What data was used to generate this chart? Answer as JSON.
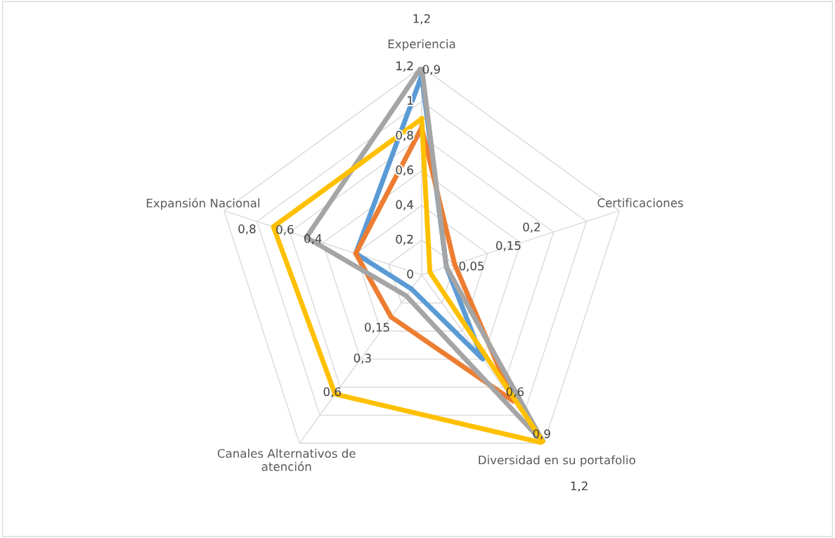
{
  "chart_data": {
    "type": "radar",
    "categories": [
      "Experiencia",
      "Certificaciones",
      "Diversidad en su portafolio",
      "Canales Alternativos de\natención",
      "Expansión Nacional"
    ],
    "series": [
      {
        "color": "#5b9bd5",
        "values": [
          1.15,
          0.15,
          0.6,
          0.1,
          0.4
        ]
      },
      {
        "color": "#ed7d31",
        "values": [
          0.85,
          0.2,
          0.9,
          0.3,
          0.4
        ]
      },
      {
        "color": "#a5a5a5",
        "values": [
          1.2,
          0.15,
          1.2,
          0.15,
          0.7
        ]
      },
      {
        "color": "#ffc000",
        "values": [
          0.9,
          0.05,
          1.2,
          0.85,
          0.9
        ]
      }
    ],
    "ylim": [
      0,
      1.2
    ],
    "yticks": [
      {
        "value": 0,
        "label": "0"
      },
      {
        "value": 0.2,
        "label": "0,2"
      },
      {
        "value": 0.4,
        "label": "0,4"
      },
      {
        "value": 0.6,
        "label": "0,6"
      },
      {
        "value": 0.8,
        "label": "0,8"
      },
      {
        "value": 1,
        "label": "1"
      },
      {
        "value": 1.2,
        "label": "1,2"
      }
    ],
    "grid": true,
    "annotations": [
      "1,2",
      "0,9",
      "0,05",
      "0,15",
      "0,2",
      "0,6",
      "0,9",
      "1,2",
      "0,15",
      "0,3",
      "0,6",
      "0,8",
      "0,6",
      "0,4"
    ]
  }
}
